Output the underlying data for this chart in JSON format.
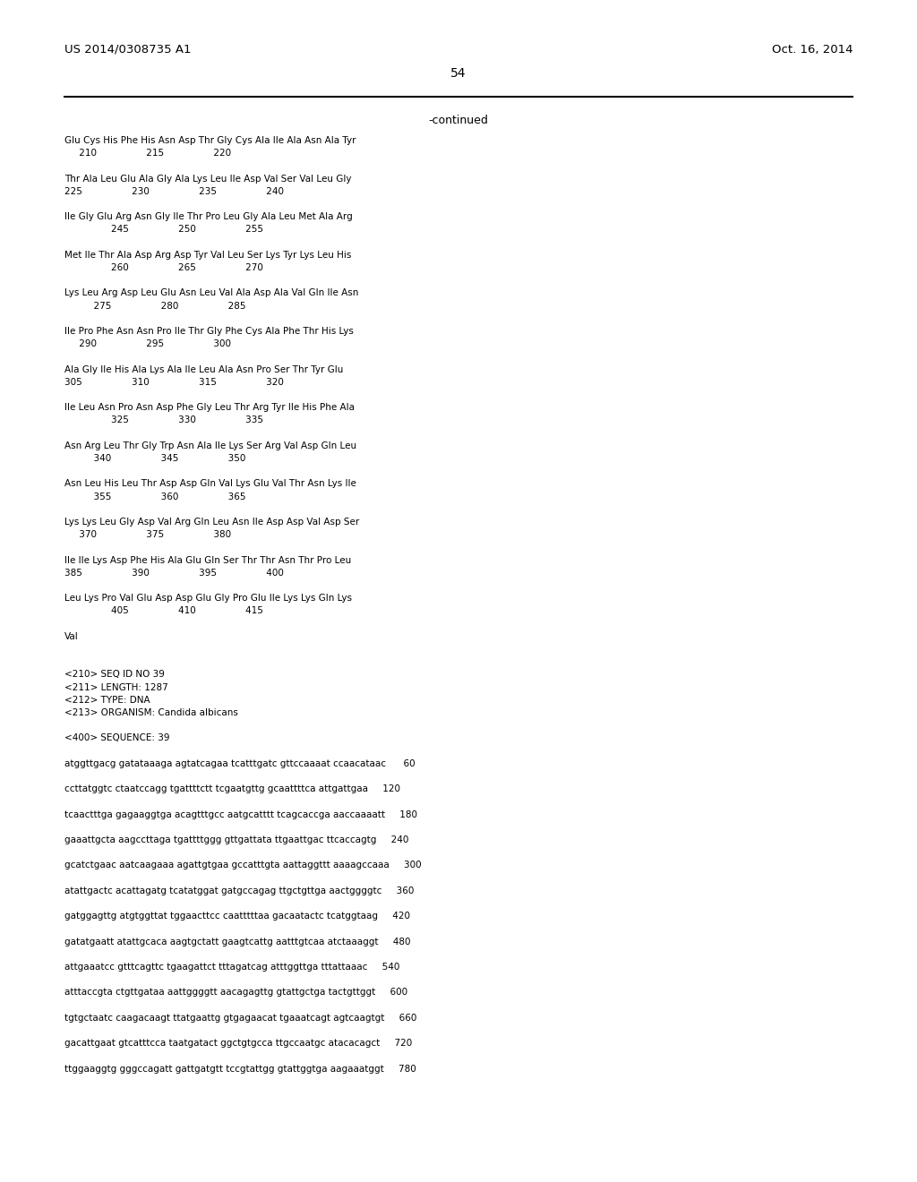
{
  "background_color": "#ffffff",
  "header_left": "US 2014/0308735 A1",
  "header_right": "Oct. 16, 2014",
  "page_number": "54",
  "continued_label": "-continued",
  "font_family": "Courier New",
  "header_fontsize": 9.5,
  "page_num_fontsize": 10,
  "continued_fontsize": 9,
  "body_fontsize": 7.5,
  "content_lines": [
    "Glu Cys His Phe His Asn Asp Thr Gly Cys Ala Ile Ala Asn Ala Tyr",
    "     210                 215                 220",
    "",
    "Thr Ala Leu Glu Ala Gly Ala Lys Leu Ile Asp Val Ser Val Leu Gly",
    "225                 230                 235                 240",
    "",
    "Ile Gly Glu Arg Asn Gly Ile Thr Pro Leu Gly Ala Leu Met Ala Arg",
    "                245                 250                 255",
    "",
    "Met Ile Thr Ala Asp Arg Asp Tyr Val Leu Ser Lys Tyr Lys Leu His",
    "                260                 265                 270",
    "",
    "Lys Leu Arg Asp Leu Glu Asn Leu Val Ala Asp Ala Val Gln Ile Asn",
    "          275                 280                 285",
    "",
    "Ile Pro Phe Asn Asn Pro Ile Thr Gly Phe Cys Ala Phe Thr His Lys",
    "     290                 295                 300",
    "",
    "Ala Gly Ile His Ala Lys Ala Ile Leu Ala Asn Pro Ser Thr Tyr Glu",
    "305                 310                 315                 320",
    "",
    "Ile Leu Asn Pro Asn Asp Phe Gly Leu Thr Arg Tyr Ile His Phe Ala",
    "                325                 330                 335",
    "",
    "Asn Arg Leu Thr Gly Trp Asn Ala Ile Lys Ser Arg Val Asp Gln Leu",
    "          340                 345                 350",
    "",
    "Asn Leu His Leu Thr Asp Asp Gln Val Lys Glu Val Thr Asn Lys Ile",
    "          355                 360                 365",
    "",
    "Lys Lys Leu Gly Asp Val Arg Gln Leu Asn Ile Asp Asp Val Asp Ser",
    "     370                 375                 380",
    "",
    "Ile Ile Lys Asp Phe His Ala Glu Gln Ser Thr Thr Asn Thr Pro Leu",
    "385                 390                 395                 400",
    "",
    "Leu Lys Pro Val Glu Asp Asp Glu Gly Pro Glu Ile Lys Lys Gln Lys",
    "                405                 410                 415",
    "",
    "Val",
    "",
    "",
    "<210> SEQ ID NO 39",
    "<211> LENGTH: 1287",
    "<212> TYPE: DNA",
    "<213> ORGANISM: Candida albicans",
    "",
    "<400> SEQUENCE: 39",
    "",
    "atggttgacg gatataaaga agtatcagaa tcatttgatc gttccaaaat ccaacataac      60",
    "",
    "ccttatggtc ctaatccagg tgattttctt tcgaatgttg gcaattttca attgattgaa     120",
    "",
    "tcaactttga gagaaggtga acagtttgcc aatgcatttt tcagcaccga aaccaaaatt     180",
    "",
    "gaaattgcta aagccttaga tgattttggg gttgattata ttgaattgac ttcaccagtg     240",
    "",
    "gcatctgaac aatcaagaaa agattgtgaa gccatttgta aattaggttt aaaagccaaa     300",
    "",
    "atattgactc acattagatg tcatatggat gatgccagag ttgctgttga aactggggtc     360",
    "",
    "gatggagttg atgtggttat tggaacttcc caatttttaa gacaatactc tcatggtaag     420",
    "",
    "gatatgaatt atattgcaca aagtgctatt gaagtcattg aatttgtcaa atctaaaggt     480",
    "",
    "attgaaatcc gtttcagttc tgaagattct tttagatcag atttggttga tttattaaac     540",
    "",
    "atttaccgta ctgttgataa aattggggtt aacagagttg gtattgctga tactgttggt     600",
    "",
    "tgtgctaatc caagacaagt ttatgaattg gtgagaacat tgaaatcagt agtcaagtgt     660",
    "",
    "gacattgaat gtcatttcca taatgatact ggctgtgcca ttgccaatgc atacacagct     720",
    "",
    "ttggaaggtg gggccagatt gattgatgtt tccgtattgg gtattggtga aagaaatggt     780"
  ]
}
